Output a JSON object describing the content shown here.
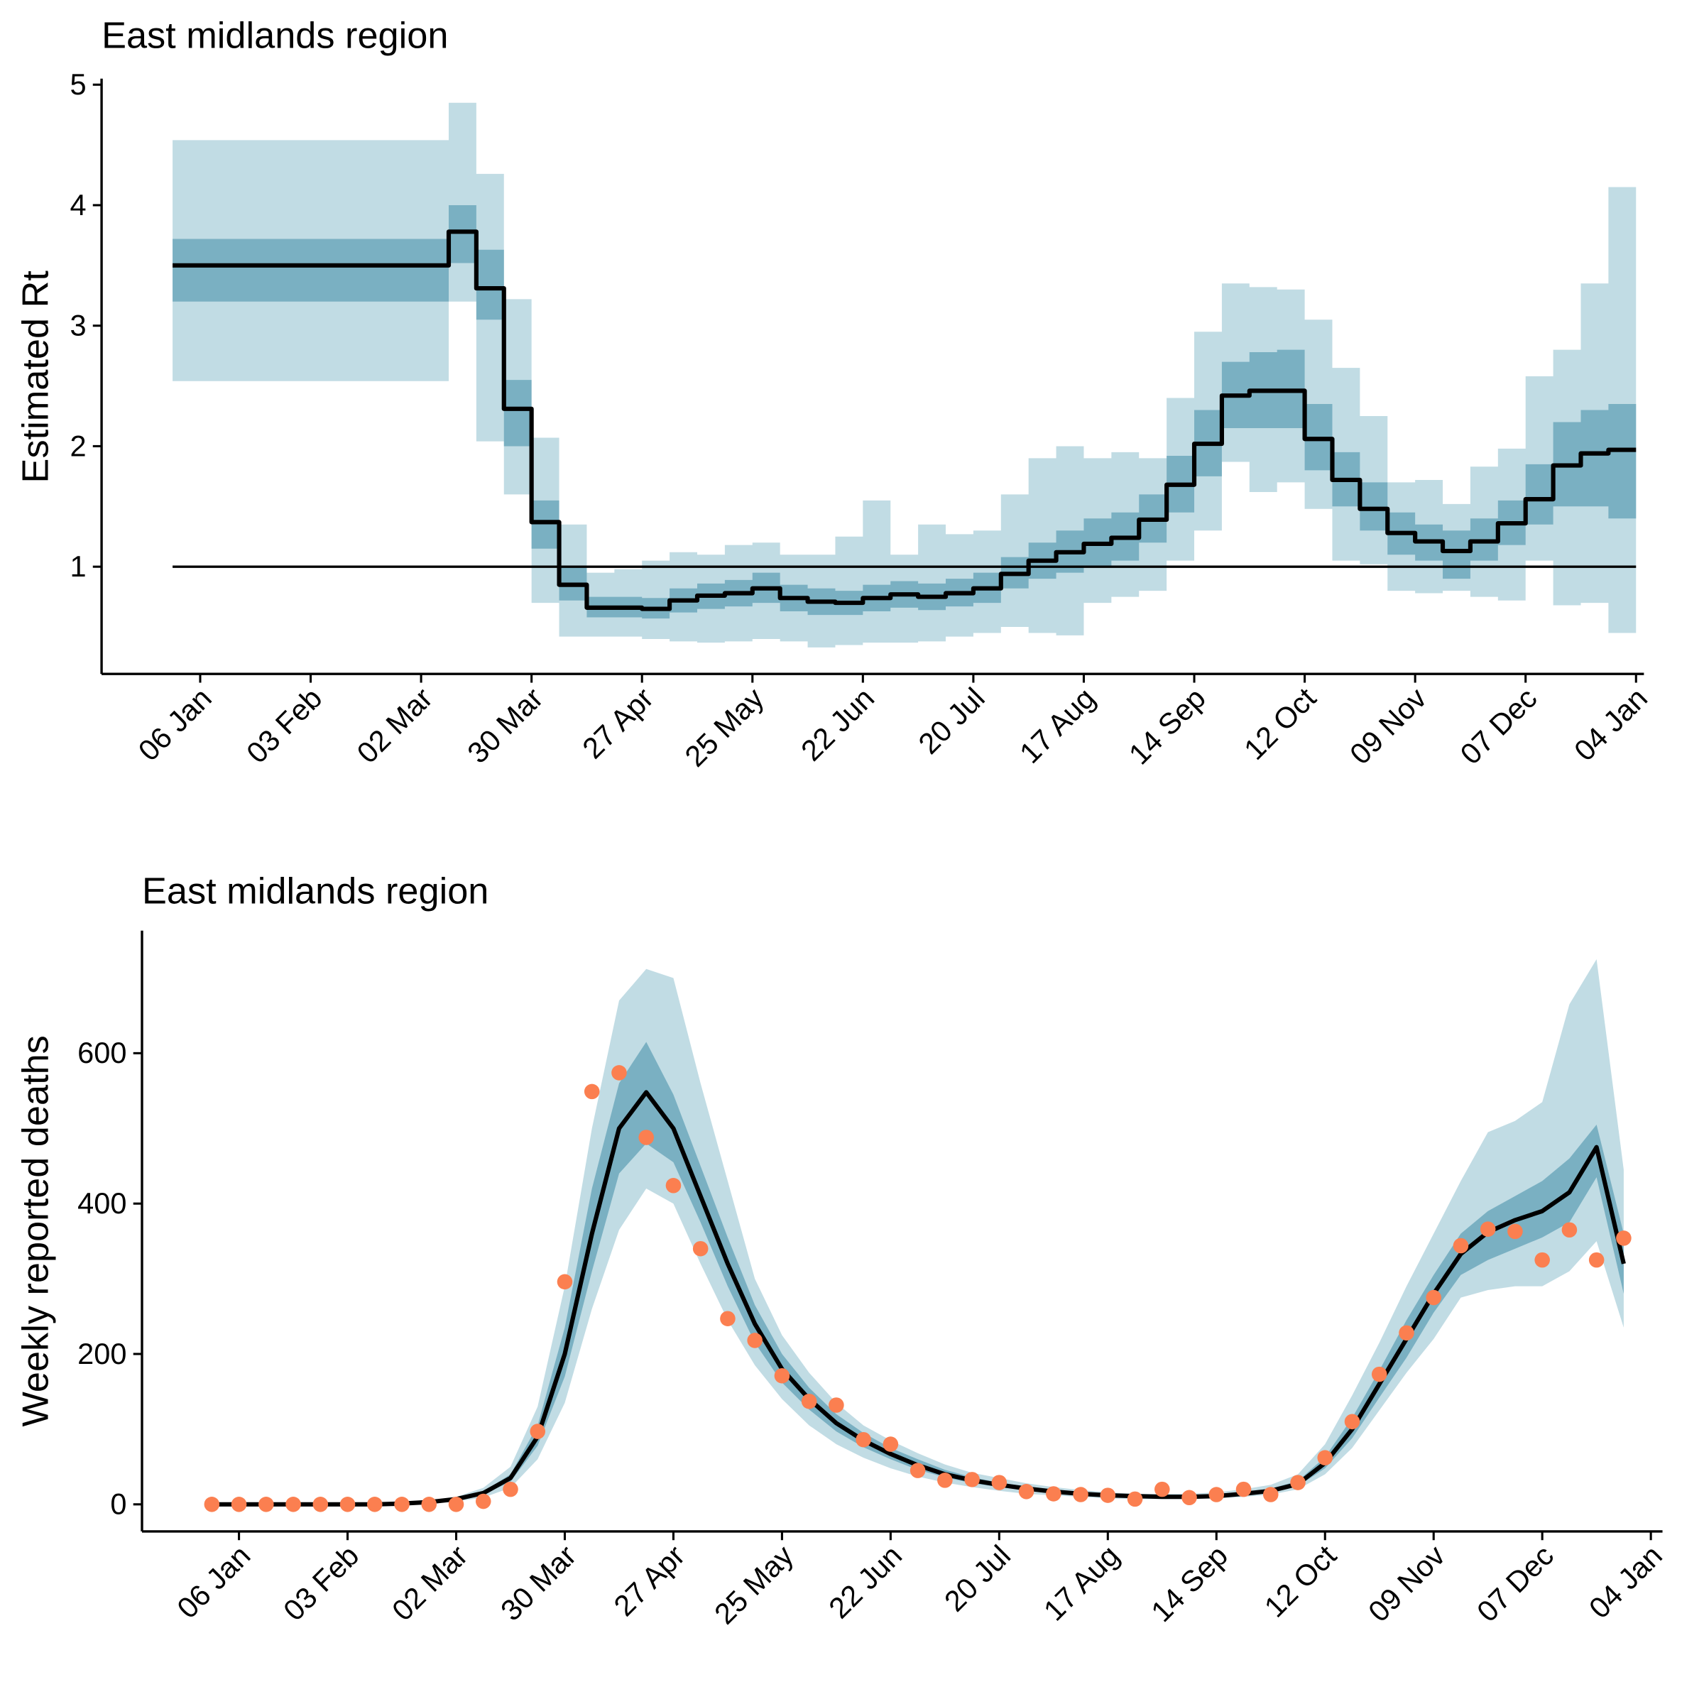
{
  "chart_data": [
    {
      "type": "step-band",
      "title": "East midlands region",
      "ylabel": "Estimated Rt",
      "x": [
        -7,
        0,
        7,
        14,
        21,
        28,
        35,
        42,
        49,
        56,
        63,
        70,
        77,
        84,
        91,
        98,
        105,
        112,
        119,
        126,
        133,
        140,
        147,
        154,
        161,
        168,
        175,
        182,
        189,
        196,
        203,
        210,
        217,
        224,
        231,
        238,
        245,
        252,
        259,
        266,
        273,
        280,
        287,
        294,
        301,
        308,
        315,
        322,
        329,
        336,
        343,
        350,
        357
      ],
      "line": {
        "color": "#000000",
        "values": [
          3.5,
          3.5,
          3.5,
          3.5,
          3.5,
          3.5,
          3.5,
          3.5,
          3.5,
          3.5,
          3.78,
          3.31,
          2.31,
          1.37,
          0.85,
          0.66,
          0.66,
          0.65,
          0.72,
          0.76,
          0.78,
          0.82,
          0.74,
          0.71,
          0.7,
          0.74,
          0.77,
          0.75,
          0.78,
          0.82,
          0.94,
          1.05,
          1.12,
          1.19,
          1.24,
          1.39,
          1.68,
          2.02,
          2.42,
          2.46,
          2.46,
          2.06,
          1.72,
          1.48,
          1.28,
          1.21,
          1.13,
          1.21,
          1.36,
          1.56,
          1.84,
          1.94,
          1.97
        ]
      },
      "bands": [
        {
          "color": "#c1dce4",
          "lower": [
            2.54,
            2.54,
            2.54,
            2.54,
            2.54,
            2.54,
            2.54,
            2.54,
            2.54,
            2.54,
            3.2,
            2.04,
            1.6,
            0.7,
            0.42,
            0.42,
            0.42,
            0.4,
            0.38,
            0.37,
            0.38,
            0.4,
            0.38,
            0.33,
            0.35,
            0.37,
            0.37,
            0.38,
            0.42,
            0.45,
            0.5,
            0.45,
            0.43,
            0.7,
            0.75,
            0.8,
            1.05,
            1.3,
            1.87,
            1.62,
            1.7,
            1.48,
            1.05,
            1.02,
            0.8,
            0.78,
            0.8,
            0.75,
            0.72,
            1.05,
            0.68,
            0.7,
            0.45
          ],
          "upper": [
            4.54,
            4.54,
            4.54,
            4.54,
            4.54,
            4.54,
            4.54,
            4.54,
            4.54,
            4.54,
            4.85,
            4.26,
            3.22,
            2.07,
            1.35,
            0.95,
            0.98,
            1.05,
            1.12,
            1.1,
            1.18,
            1.2,
            1.1,
            1.1,
            1.25,
            1.55,
            1.1,
            1.35,
            1.27,
            1.3,
            1.6,
            1.9,
            2.0,
            1.9,
            1.95,
            1.9,
            2.4,
            2.95,
            3.35,
            3.32,
            3.3,
            3.05,
            2.65,
            2.25,
            1.7,
            1.72,
            1.52,
            1.83,
            1.98,
            2.58,
            2.8,
            3.35,
            4.15
          ]
        },
        {
          "color": "#7ab0c2",
          "lower": [
            3.2,
            3.2,
            3.2,
            3.2,
            3.2,
            3.2,
            3.2,
            3.2,
            3.2,
            3.2,
            3.52,
            3.05,
            2.0,
            1.15,
            0.72,
            0.58,
            0.58,
            0.57,
            0.62,
            0.65,
            0.67,
            0.7,
            0.63,
            0.6,
            0.6,
            0.63,
            0.66,
            0.64,
            0.67,
            0.7,
            0.82,
            0.9,
            0.95,
            1.0,
            1.05,
            1.2,
            1.45,
            1.75,
            2.15,
            2.15,
            2.15,
            1.8,
            1.5,
            1.3,
            1.1,
            1.05,
            0.9,
            1.05,
            1.18,
            1.35,
            1.5,
            1.5,
            1.4
          ],
          "upper": [
            3.72,
            3.72,
            3.72,
            3.72,
            3.72,
            3.72,
            3.72,
            3.72,
            3.72,
            3.72,
            4.0,
            3.63,
            2.55,
            1.55,
            1.0,
            0.75,
            0.75,
            0.74,
            0.82,
            0.86,
            0.89,
            0.95,
            0.85,
            0.82,
            0.8,
            0.85,
            0.88,
            0.86,
            0.9,
            0.95,
            1.08,
            1.2,
            1.3,
            1.4,
            1.45,
            1.6,
            1.92,
            2.3,
            2.7,
            2.78,
            2.8,
            2.35,
            1.95,
            1.7,
            1.45,
            1.35,
            1.3,
            1.4,
            1.55,
            1.85,
            2.2,
            2.3,
            2.35
          ]
        }
      ],
      "reference_line": 1,
      "xlim": [
        -25,
        366
      ],
      "xticks": [
        {
          "value": 0,
          "label": "06 Jan"
        },
        {
          "value": 28,
          "label": "03 Feb"
        },
        {
          "value": 56,
          "label": "02 Mar"
        },
        {
          "value": 84,
          "label": "30 Mar"
        },
        {
          "value": 112,
          "label": "27 Apr"
        },
        {
          "value": 140,
          "label": "25 May"
        },
        {
          "value": 168,
          "label": "22 Jun"
        },
        {
          "value": 196,
          "label": "20 Jul"
        },
        {
          "value": 224,
          "label": "17 Aug"
        },
        {
          "value": 252,
          "label": "14 Sep"
        },
        {
          "value": 280,
          "label": "12 Oct"
        },
        {
          "value": 308,
          "label": "09 Nov"
        },
        {
          "value": 336,
          "label": "07 Dec"
        },
        {
          "value": 364,
          "label": "04 Jan"
        }
      ],
      "ylim": [
        0.11,
        5.05
      ],
      "yticks": [
        1,
        2,
        3,
        4,
        5
      ]
    },
    {
      "type": "line-band",
      "title": "East midlands region",
      "ylabel": "Weekly reported deaths",
      "x": [
        -7,
        0,
        7,
        14,
        21,
        28,
        35,
        42,
        49,
        56,
        63,
        70,
        77,
        84,
        91,
        98,
        105,
        112,
        119,
        126,
        133,
        140,
        147,
        154,
        161,
        168,
        175,
        182,
        189,
        196,
        203,
        210,
        217,
        224,
        231,
        238,
        245,
        252,
        259,
        266,
        273,
        280,
        287,
        294,
        301,
        308,
        315,
        322,
        329,
        336,
        343,
        350,
        357
      ],
      "line": {
        "color": "#000000",
        "values": [
          0,
          0,
          0,
          0,
          0,
          0,
          0,
          1,
          3,
          7,
          15,
          35,
          90,
          200,
          360,
          500,
          548,
          500,
          410,
          320,
          240,
          180,
          140,
          108,
          85,
          67,
          52,
          40,
          32,
          26,
          21,
          17,
          14,
          12,
          11,
          10,
          10,
          11,
          14,
          18,
          27,
          55,
          100,
          160,
          220,
          280,
          333,
          362,
          378,
          390,
          415,
          475,
          320
        ]
      },
      "bands": [
        {
          "color": "#c1dce4",
          "lower": [
            0,
            0,
            0,
            0,
            0,
            0,
            0,
            0,
            1,
            4,
            9,
            22,
            60,
            135,
            260,
            365,
            420,
            400,
            320,
            245,
            185,
            140,
            105,
            80,
            62,
            48,
            37,
            29,
            23,
            18,
            14,
            12,
            10,
            8,
            7,
            7,
            7,
            8,
            10,
            13,
            20,
            40,
            75,
            125,
            175,
            220,
            275,
            285,
            290,
            290,
            310,
            350,
            235
          ],
          "upper": [
            1,
            1,
            1,
            1,
            1,
            1,
            1,
            2,
            5,
            10,
            22,
            50,
            130,
            290,
            500,
            670,
            712,
            700,
            560,
            430,
            300,
            225,
            175,
            135,
            105,
            85,
            68,
            53,
            42,
            35,
            28,
            23,
            19,
            16,
            14,
            14,
            14,
            16,
            20,
            26,
            40,
            80,
            145,
            215,
            290,
            360,
            430,
            495,
            510,
            535,
            665,
            725,
            445
          ]
        },
        {
          "color": "#7ab0c2",
          "lower": [
            0,
            0,
            0,
            0,
            0,
            0,
            0,
            0,
            2,
            6,
            13,
            30,
            78,
            170,
            310,
            440,
            480,
            455,
            375,
            290,
            215,
            162,
            126,
            97,
            76,
            60,
            46,
            36,
            28,
            23,
            19,
            15,
            12,
            10,
            9,
            9,
            9,
            10,
            12,
            16,
            24,
            48,
            88,
            142,
            195,
            255,
            305,
            325,
            340,
            355,
            375,
            435,
            280
          ],
          "upper": [
            0,
            0,
            0,
            0,
            0,
            0,
            0,
            1,
            3,
            8,
            17,
            40,
            105,
            235,
            420,
            560,
            615,
            545,
            450,
            355,
            265,
            200,
            155,
            120,
            95,
            75,
            60,
            46,
            36,
            29,
            24,
            20,
            16,
            14,
            12,
            11,
            11,
            13,
            16,
            21,
            31,
            63,
            115,
            178,
            245,
            305,
            360,
            390,
            410,
            430,
            460,
            505,
            360
          ]
        }
      ],
      "points": {
        "color": "#fb7f50",
        "values": [
          0,
          0,
          0,
          0,
          0,
          0,
          0,
          0,
          0,
          0,
          4,
          20,
          97,
          296,
          549,
          574,
          488,
          424,
          340,
          247,
          218,
          171,
          137,
          132,
          86,
          80,
          45,
          32,
          33,
          29,
          17,
          14,
          13,
          12,
          7,
          20,
          9,
          13,
          20,
          13,
          29,
          62,
          110,
          173,
          228,
          275,
          344,
          366,
          363,
          325,
          365,
          325,
          354
        ]
      },
      "xlim": [
        -25,
        367
      ],
      "xticks": [
        {
          "value": 0,
          "label": "06 Jan"
        },
        {
          "value": 28,
          "label": "03 Feb"
        },
        {
          "value": 56,
          "label": "02 Mar"
        },
        {
          "value": 84,
          "label": "30 Mar"
        },
        {
          "value": 112,
          "label": "27 Apr"
        },
        {
          "value": 140,
          "label": "25 May"
        },
        {
          "value": 168,
          "label": "22 Jun"
        },
        {
          "value": 196,
          "label": "20 Jul"
        },
        {
          "value": 224,
          "label": "17 Aug"
        },
        {
          "value": 252,
          "label": "14 Sep"
        },
        {
          "value": 280,
          "label": "12 Oct"
        },
        {
          "value": 308,
          "label": "09 Nov"
        },
        {
          "value": 336,
          "label": "07 Dec"
        },
        {
          "value": 364,
          "label": "04 Jan"
        }
      ],
      "ylim": [
        -36,
        763
      ],
      "yticks": [
        0,
        200,
        400,
        600
      ]
    }
  ]
}
